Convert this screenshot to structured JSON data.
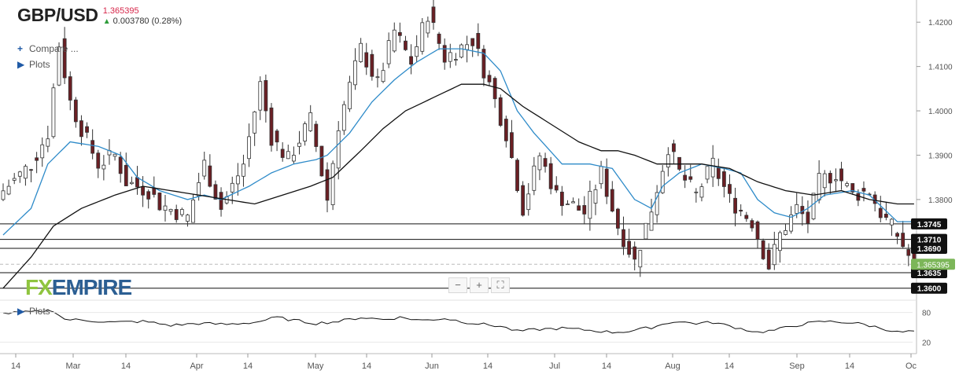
{
  "header": {
    "symbol": "GBP/USD",
    "price": "1.365395",
    "change": "0.003780 (0.28%)"
  },
  "menu": {
    "compare": "Compare ...",
    "plots_main": "Plots",
    "plots_sub": "Plots"
  },
  "controls": {
    "zoom_out": "−",
    "zoom_in": "+",
    "fit": "⛶"
  },
  "logo": {
    "fx": "FX",
    "empire": "EMPIRE"
  },
  "colors": {
    "up": "#ffffff",
    "down": "#6b1f24",
    "ma_fast": "#2e8bc9",
    "ma_slow": "#111111",
    "last_price_tag": "#7cb659",
    "level_tag": "#111111"
  },
  "chart_data": {
    "type": "candlestick",
    "y_axis_ticks": [
      "1.4200",
      "1.4100",
      "1.4000",
      "1.3900",
      "1.3800"
    ],
    "x_axis_ticks": [
      "14",
      "Mar",
      "14",
      "Apr",
      "14",
      "May",
      "14",
      "Jun",
      "14",
      "Jul",
      "14",
      "Aug",
      "14",
      "Sep",
      "14",
      "Oc"
    ],
    "ylim": [
      1.358,
      1.425
    ],
    "last_price": 1.365395,
    "horizontal_levels": [
      {
        "value": 1.3745,
        "label": "1.3745"
      },
      {
        "value": 1.371,
        "label": "1.3710"
      },
      {
        "value": 1.369,
        "label": "1.3690"
      },
      {
        "value": 1.3635,
        "label": "1.3635"
      },
      {
        "value": 1.36,
        "label": "1.3600"
      }
    ],
    "close_path": [
      [
        0,
        1.382
      ],
      [
        5,
        1.388
      ],
      [
        8,
        1.395
      ],
      [
        10,
        1.415
      ],
      [
        12,
        1.402
      ],
      [
        14,
        1.396
      ],
      [
        17,
        1.388
      ],
      [
        20,
        1.39
      ],
      [
        22,
        1.384
      ],
      [
        26,
        1.382
      ],
      [
        28,
        1.379
      ],
      [
        33,
        1.376
      ],
      [
        36,
        1.388
      ],
      [
        39,
        1.378
      ],
      [
        43,
        1.388
      ],
      [
        46,
        1.406
      ],
      [
        48,
        1.394
      ],
      [
        51,
        1.389
      ],
      [
        55,
        1.398
      ],
      [
        58,
        1.38
      ],
      [
        60,
        1.397
      ],
      [
        64,
        1.414
      ],
      [
        67,
        1.406
      ],
      [
        70,
        1.418
      ],
      [
        73,
        1.411
      ],
      [
        76,
        1.422
      ],
      [
        79,
        1.412
      ],
      [
        84,
        1.416
      ],
      [
        87,
        1.406
      ],
      [
        90,
        1.395
      ],
      [
        93,
        1.378
      ],
      [
        96,
        1.39
      ],
      [
        99,
        1.381
      ],
      [
        104,
        1.377
      ],
      [
        107,
        1.386
      ],
      [
        110,
        1.374
      ],
      [
        113,
        1.366
      ],
      [
        116,
        1.378
      ],
      [
        119,
        1.392
      ],
      [
        121,
        1.386
      ],
      [
        124,
        1.381
      ],
      [
        127,
        1.388
      ],
      [
        130,
        1.38
      ],
      [
        134,
        1.375
      ],
      [
        137,
        1.365
      ],
      [
        139,
        1.372
      ],
      [
        142,
        1.378
      ],
      [
        144,
        1.375
      ],
      [
        146,
        1.384
      ],
      [
        149,
        1.386
      ],
      [
        152,
        1.381
      ],
      [
        155,
        1.382
      ],
      [
        157,
        1.377
      ],
      [
        160,
        1.372
      ],
      [
        163,
        1.365
      ]
    ],
    "ma_fast_path": [
      [
        0,
        1.372
      ],
      [
        5,
        1.378
      ],
      [
        8,
        1.388
      ],
      [
        12,
        1.393
      ],
      [
        17,
        1.392
      ],
      [
        21,
        1.39
      ],
      [
        24,
        1.385
      ],
      [
        28,
        1.382
      ],
      [
        33,
        1.38
      ],
      [
        36,
        1.381
      ],
      [
        39,
        1.38
      ],
      [
        44,
        1.383
      ],
      [
        48,
        1.386
      ],
      [
        52,
        1.388
      ],
      [
        56,
        1.389
      ],
      [
        58,
        1.39
      ],
      [
        62,
        1.395
      ],
      [
        66,
        1.402
      ],
      [
        70,
        1.407
      ],
      [
        74,
        1.411
      ],
      [
        78,
        1.414
      ],
      [
        82,
        1.414
      ],
      [
        86,
        1.413
      ],
      [
        89,
        1.409
      ],
      [
        92,
        1.4
      ],
      [
        95,
        1.395
      ],
      [
        100,
        1.388
      ],
      [
        105,
        1.388
      ],
      [
        109,
        1.387
      ],
      [
        113,
        1.38
      ],
      [
        116,
        1.378
      ],
      [
        118,
        1.383
      ],
      [
        121,
        1.386
      ],
      [
        125,
        1.388
      ],
      [
        129,
        1.387
      ],
      [
        132,
        1.386
      ],
      [
        135,
        1.38
      ],
      [
        138,
        1.377
      ],
      [
        141,
        1.376
      ],
      [
        144,
        1.378
      ],
      [
        147,
        1.381
      ],
      [
        152,
        1.382
      ],
      [
        155,
        1.381
      ],
      [
        160,
        1.375
      ]
    ],
    "ma_slow_path": [
      [
        0,
        1.36
      ],
      [
        5,
        1.367
      ],
      [
        9,
        1.374
      ],
      [
        14,
        1.378
      ],
      [
        20,
        1.381
      ],
      [
        25,
        1.383
      ],
      [
        30,
        1.382
      ],
      [
        35,
        1.381
      ],
      [
        40,
        1.38
      ],
      [
        45,
        1.379
      ],
      [
        50,
        1.381
      ],
      [
        55,
        1.383
      ],
      [
        59,
        1.385
      ],
      [
        64,
        1.391
      ],
      [
        68,
        1.396
      ],
      [
        72,
        1.4
      ],
      [
        77,
        1.403
      ],
      [
        82,
        1.406
      ],
      [
        86,
        1.406
      ],
      [
        89,
        1.405
      ],
      [
        93,
        1.401
      ],
      [
        98,
        1.397
      ],
      [
        103,
        1.393
      ],
      [
        107,
        1.391
      ],
      [
        110,
        1.391
      ],
      [
        113,
        1.39
      ],
      [
        117,
        1.388
      ],
      [
        120,
        1.388
      ],
      [
        125,
        1.388
      ],
      [
        130,
        1.387
      ],
      [
        135,
        1.384
      ],
      [
        140,
        1.382
      ],
      [
        145,
        1.381
      ],
      [
        150,
        1.382
      ],
      [
        155,
        1.38
      ],
      [
        160,
        1.379
      ]
    ],
    "oscillator": {
      "y_axis_ticks": [
        "80",
        "20"
      ],
      "path": [
        [
          0,
          78
        ],
        [
          4,
          80
        ],
        [
          9,
          84
        ],
        [
          11,
          66
        ],
        [
          15,
          64
        ],
        [
          20,
          60
        ],
        [
          25,
          62
        ],
        [
          30,
          54
        ],
        [
          35,
          58
        ],
        [
          40,
          56
        ],
        [
          45,
          60
        ],
        [
          49,
          70
        ],
        [
          52,
          64
        ],
        [
          56,
          58
        ],
        [
          60,
          62
        ],
        [
          64,
          70
        ],
        [
          68,
          66
        ],
        [
          71,
          70
        ],
        [
          75,
          64
        ],
        [
          79,
          68
        ],
        [
          83,
          60
        ],
        [
          86,
          56
        ],
        [
          89,
          52
        ],
        [
          92,
          42
        ],
        [
          96,
          46
        ],
        [
          100,
          48
        ],
        [
          105,
          44
        ],
        [
          109,
          40
        ],
        [
          112,
          42
        ],
        [
          116,
          50
        ],
        [
          120,
          62
        ],
        [
          124,
          58
        ],
        [
          127,
          60
        ],
        [
          131,
          50
        ],
        [
          135,
          40
        ],
        [
          138,
          44
        ],
        [
          141,
          52
        ],
        [
          144,
          58
        ],
        [
          147,
          62
        ],
        [
          151,
          60
        ],
        [
          154,
          56
        ],
        [
          158,
          46
        ],
        [
          160,
          40
        ],
        [
          163,
          42
        ]
      ]
    }
  }
}
